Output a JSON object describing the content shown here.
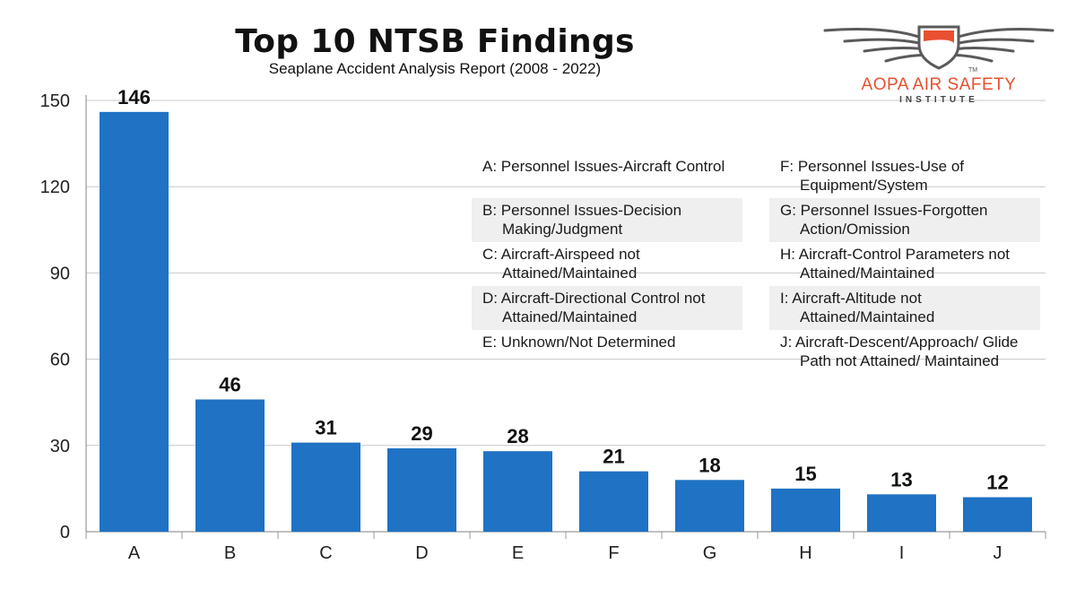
{
  "header": {
    "title": "Top 10 NTSB Findings",
    "subtitle": "Seaplane Accident Analysis Report (2008 - 2022)"
  },
  "brand": {
    "name": "AOPA AIR SAFETY",
    "sub": "INSTITUTE",
    "tm": "TM",
    "logo_icon": "wings-shield-icon",
    "accent_color": "#e8502f"
  },
  "legend": {
    "left": [
      "A: Personnel Issues-Aircraft Control",
      "B: Personnel Issues-Decision Making/Judgment",
      "C: Aircraft-Airspeed not Attained/Maintained",
      "D: Aircraft-Directional Control not Attained/Maintained",
      "E: Unknown/Not Determined"
    ],
    "right": [
      "F: Personnel Issues-Use of Equipment/System",
      "G: Personnel Issues-Forgotten Action/Omission",
      "H: Aircraft-Control Parameters not Attained/Maintained",
      "I: Aircraft-Altitude not Attained/Maintained",
      "J: Aircraft-Descent/Approach/ Glide Path not Attained/ Maintained"
    ]
  },
  "chart_data": {
    "type": "bar",
    "title": "Top 10 NTSB Findings",
    "subtitle": "Seaplane Accident Analysis Report (2008 - 2022)",
    "categories": [
      "A",
      "B",
      "C",
      "D",
      "E",
      "F",
      "G",
      "H",
      "I",
      "J"
    ],
    "values": [
      146,
      46,
      31,
      29,
      28,
      21,
      18,
      15,
      13,
      12
    ],
    "ylim": [
      0,
      150
    ],
    "yticks": [
      0,
      30,
      60,
      90,
      120,
      150
    ],
    "xlabel": "",
    "ylabel": "",
    "grid": true,
    "bar_color": "#1f72c4",
    "grid_color": "#c8c8c8"
  }
}
